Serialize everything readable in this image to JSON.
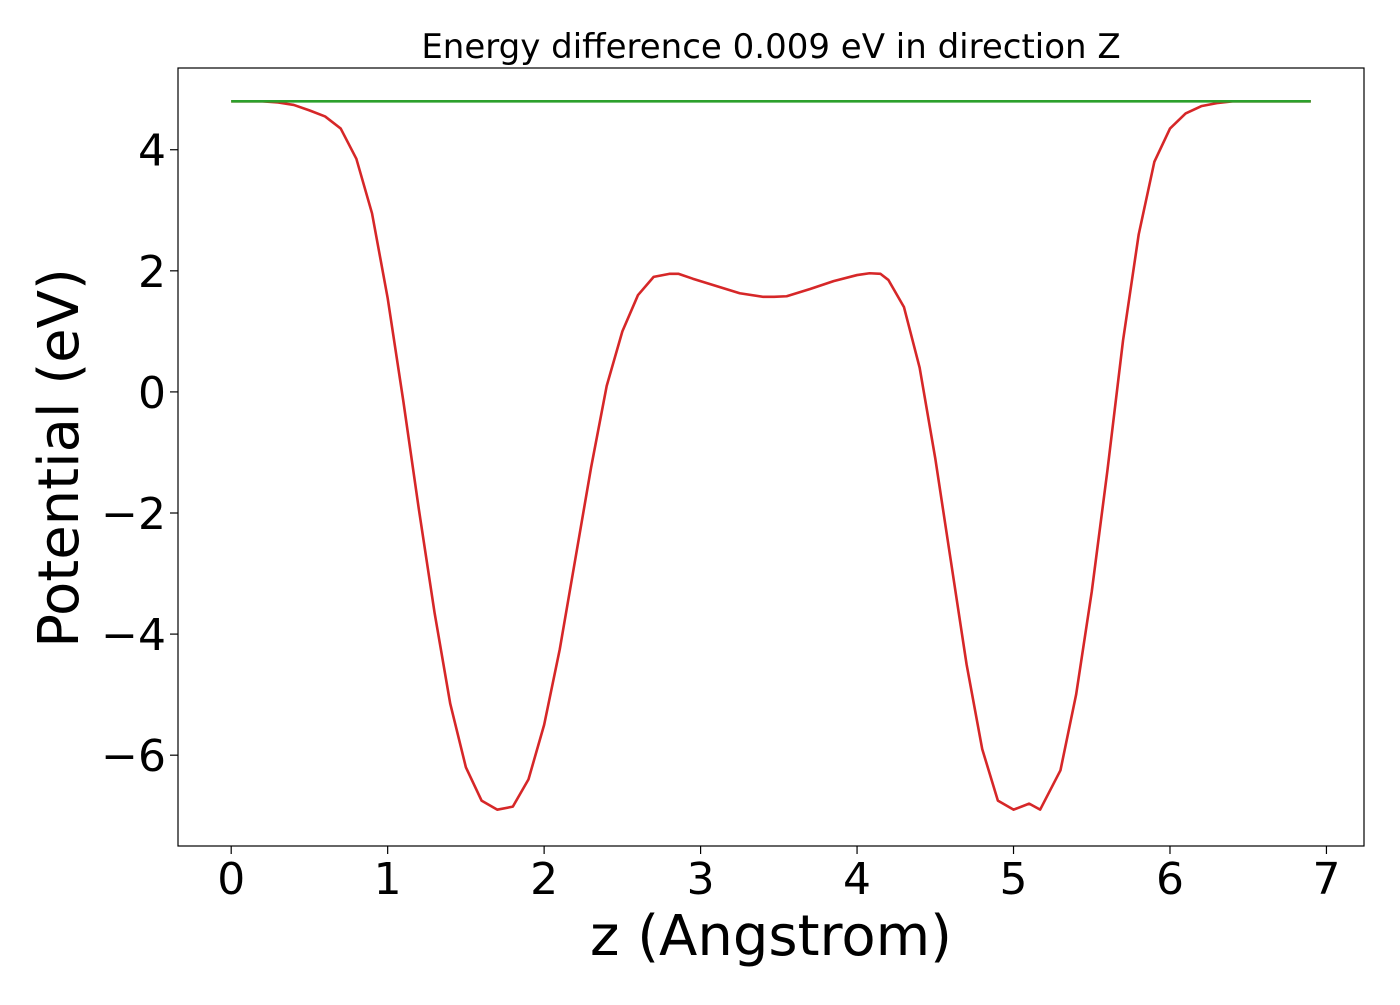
{
  "chart_data": {
    "type": "line",
    "title": "Energy difference 0.009 eV in direction Z",
    "xlabel": "z (Angstrom)",
    "ylabel": "Potential (eV)",
    "xlim": [
      -0.34,
      7.24
    ],
    "ylim": [
      -7.5,
      5.35
    ],
    "xticks": [
      0,
      1,
      2,
      3,
      4,
      5,
      6,
      7
    ],
    "yticks": [
      -6,
      -4,
      -2,
      0,
      2,
      4
    ],
    "xtick_labels": [
      "0",
      "1",
      "2",
      "3",
      "4",
      "5",
      "6",
      "7"
    ],
    "ytick_labels": [
      "−6",
      "−4",
      "−2",
      "0",
      "2",
      "4"
    ],
    "grid": false,
    "legend": null,
    "series": [
      {
        "color": "#d62728",
        "x": [
          0.0,
          0.1,
          0.2,
          0.3,
          0.4,
          0.5,
          0.6,
          0.7,
          0.8,
          0.9,
          1.0,
          1.1,
          1.2,
          1.3,
          1.4,
          1.5,
          1.6,
          1.7,
          1.8,
          1.9,
          2.0,
          2.1,
          2.2,
          2.3,
          2.4,
          2.5,
          2.6,
          2.7,
          2.8,
          2.86,
          2.95,
          3.1,
          3.25,
          3.4,
          3.47,
          3.55,
          3.7,
          3.85,
          4.0,
          4.08,
          4.15,
          4.2,
          4.3,
          4.4,
          4.5,
          4.6,
          4.7,
          4.8,
          4.9,
          5.0,
          5.1,
          5.17,
          5.3,
          5.4,
          5.5,
          5.6,
          5.7,
          5.8,
          5.9,
          6.0,
          6.1,
          6.2,
          6.3,
          6.4,
          6.5,
          6.6,
          6.7,
          6.8,
          6.9
        ],
        "y": [
          4.8,
          4.8,
          4.8,
          4.78,
          4.74,
          4.65,
          4.55,
          4.35,
          3.85,
          2.95,
          1.55,
          -0.15,
          -1.95,
          -3.65,
          -5.15,
          -6.2,
          -6.75,
          -6.9,
          -6.85,
          -6.4,
          -5.5,
          -4.25,
          -2.75,
          -1.25,
          0.1,
          1.0,
          1.6,
          1.9,
          1.95,
          1.95,
          1.87,
          1.75,
          1.63,
          1.57,
          1.57,
          1.58,
          1.7,
          1.83,
          1.93,
          1.96,
          1.95,
          1.85,
          1.4,
          0.4,
          -1.1,
          -2.8,
          -4.5,
          -5.9,
          -6.75,
          -6.9,
          -6.8,
          -6.9,
          -6.25,
          -5.0,
          -3.3,
          -1.3,
          0.85,
          2.6,
          3.8,
          4.35,
          4.6,
          4.72,
          4.77,
          4.8,
          4.8,
          4.8,
          4.8,
          4.8,
          4.8
        ]
      },
      {
        "color": "#2ca02c",
        "x": [
          0.0,
          6.9
        ],
        "y": [
          4.8,
          4.8
        ]
      }
    ]
  }
}
